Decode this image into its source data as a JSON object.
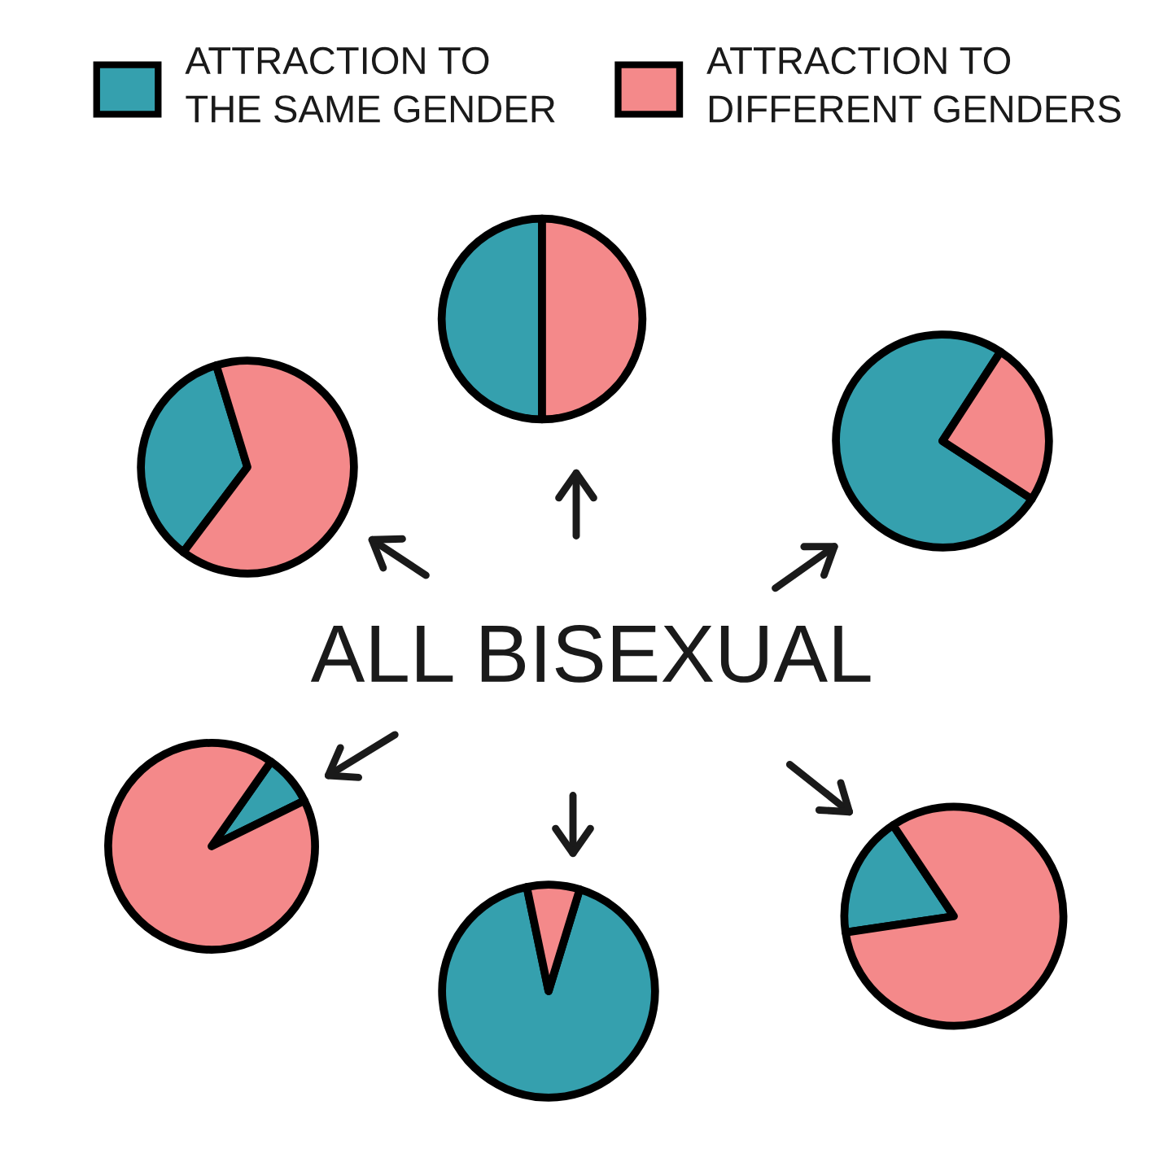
{
  "chart_data": [
    {
      "type": "pie",
      "categories": [
        "ATTRACTION TO\nTHE SAME GENDER",
        "ATTRACTION TO\nDIFFERENT GENDERS"
      ],
      "values": [
        50,
        50
      ],
      "colors": [
        "#35a0ae",
        "#f4898a"
      ],
      "legend": "top"
    },
    {
      "type": "pie",
      "categories": [
        null,
        null
      ],
      "values": [
        35,
        65
      ],
      "colors": [
        "#35a0ae",
        "#f4898a"
      ]
    },
    {
      "type": "pie",
      "categories": [
        null,
        null
      ],
      "values": [
        75,
        25
      ],
      "colors": [
        "#35a0ae",
        "#f4898a"
      ]
    },
    {
      "type": "other",
      "title": "ALL BISEXUAL"
    },
    {
      "type": "pie",
      "categories": [
        null,
        null
      ],
      "values": [
        8,
        92
      ],
      "colors": [
        "#35a0ae",
        "#f4898a"
      ]
    },
    {
      "type": "pie",
      "categories": [
        null,
        null
      ],
      "values": [
        92,
        8
      ],
      "colors": [
        "#35a0ae",
        "#f4898a"
      ]
    },
    {
      "type": "pie",
      "categories": [
        null,
        null
      ],
      "values": [
        18,
        82
      ],
      "colors": [
        "#35a0ae",
        "#f4898a"
      ]
    }
  ]
}
